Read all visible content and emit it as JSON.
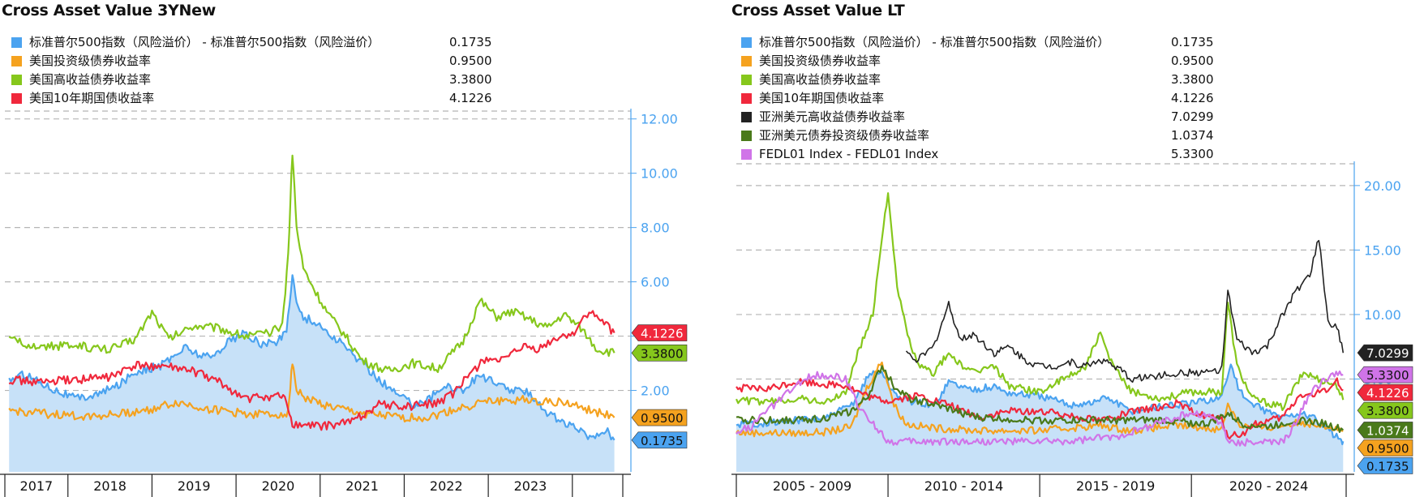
{
  "chart_data": [
    {
      "type": "area",
      "title": "Cross Asset Value 3YNew",
      "x_tick_labels": [
        "2017",
        "2018",
        "2019",
        "2020",
        "2021",
        "2022",
        "2023"
      ],
      "y_tick_labels": [
        "2.00",
        "4.00",
        "6.00",
        "8.00",
        "10.00",
        "12.00"
      ],
      "ylim": [
        -1.0,
        12.2
      ],
      "xlim": [
        2016.75,
        2024.1
      ],
      "grid": true,
      "y_axis_side": "right",
      "legend_position": "top-left",
      "series": [
        {
          "name": "标准普尔500指数（风险溢价） - 标准普尔500指数（风险溢价）",
          "legend_value": "0.1735",
          "last_label": "0.1735",
          "color": "#4ba3f0",
          "fill": "#c7e1f8",
          "x": [
            2016.8,
            2017.0,
            2017.3,
            2017.6,
            2017.9,
            2018.1,
            2018.3,
            2018.6,
            2018.9,
            2019.0,
            2019.2,
            2019.4,
            2019.6,
            2019.8,
            2020.0,
            2020.1,
            2020.17,
            2020.22,
            2020.3,
            2020.45,
            2020.6,
            2020.8,
            2021.0,
            2021.2,
            2021.4,
            2021.6,
            2021.8,
            2022.0,
            2022.2,
            2022.4,
            2022.6,
            2022.8,
            2023.0,
            2023.2,
            2023.4,
            2023.6,
            2023.75,
            2023.9,
            2024.0
          ],
          "y": [
            2.4,
            2.6,
            2.1,
            1.7,
            1.9,
            2.2,
            2.7,
            2.9,
            3.6,
            3.4,
            3.2,
            3.8,
            4.1,
            3.7,
            3.8,
            4.2,
            6.3,
            5.2,
            4.7,
            4.5,
            4.1,
            3.6,
            3.0,
            2.4,
            1.9,
            1.5,
            1.7,
            2.2,
            2.0,
            2.6,
            2.2,
            2.0,
            1.9,
            1.2,
            0.8,
            0.5,
            0.25,
            0.6,
            0.17
          ]
        },
        {
          "name": "美国投资级债券收益率",
          "legend_value": "0.9500",
          "last_label": "0.9500",
          "color": "#f5a21f",
          "x": [
            2016.8,
            2017.2,
            2017.6,
            2018.0,
            2018.4,
            2018.8,
            2019.2,
            2019.6,
            2019.95,
            2020.12,
            2020.17,
            2020.22,
            2020.35,
            2020.6,
            2021.0,
            2021.4,
            2021.8,
            2022.0,
            2022.4,
            2022.8,
            2023.0,
            2023.4,
            2023.8,
            2024.0
          ],
          "y": [
            1.25,
            1.15,
            1.05,
            1.1,
            1.25,
            1.55,
            1.3,
            1.15,
            1.1,
            1.2,
            3.1,
            2.0,
            1.7,
            1.4,
            1.15,
            1.0,
            1.0,
            1.2,
            1.55,
            1.65,
            1.65,
            1.55,
            1.2,
            1.0
          ]
        },
        {
          "name": "美国高收益债券收益率",
          "legend_value": "3.3800",
          "last_label": "3.3800",
          "color": "#86c71c",
          "x": [
            2016.8,
            2017.2,
            2017.6,
            2018.0,
            2018.3,
            2018.5,
            2018.7,
            2019.0,
            2019.3,
            2019.6,
            2019.9,
            2020.05,
            2020.12,
            2020.17,
            2020.22,
            2020.3,
            2020.45,
            2020.6,
            2020.8,
            2021.0,
            2021.3,
            2021.6,
            2021.9,
            2022.2,
            2022.4,
            2022.6,
            2022.8,
            2023.0,
            2023.2,
            2023.4,
            2023.6,
            2023.8,
            2024.0
          ],
          "y": [
            3.85,
            3.6,
            3.65,
            3.5,
            3.9,
            4.9,
            3.9,
            4.4,
            4.3,
            4.0,
            4.1,
            4.4,
            7.0,
            10.8,
            8.0,
            6.5,
            5.6,
            4.8,
            4.0,
            3.1,
            2.7,
            3.0,
            2.8,
            3.8,
            5.3,
            4.7,
            4.9,
            4.6,
            4.3,
            4.8,
            4.3,
            3.5,
            3.38
          ]
        },
        {
          "name": "美国10年期国债收益率",
          "legend_value": "4.1226",
          "last_label": "4.1226",
          "color": "#f0283c",
          "x": [
            2016.8,
            2017.2,
            2017.6,
            2018.0,
            2018.3,
            2018.6,
            2019.0,
            2019.3,
            2019.6,
            2020.0,
            2020.1,
            2020.17,
            2020.3,
            2020.6,
            2020.9,
            2021.2,
            2021.5,
            2021.9,
            2022.1,
            2022.3,
            2022.5,
            2022.7,
            2022.9,
            2023.1,
            2023.3,
            2023.5,
            2023.7,
            2023.9,
            2024.0
          ],
          "y": [
            2.4,
            2.3,
            2.4,
            2.5,
            2.9,
            2.9,
            2.7,
            2.3,
            1.7,
            1.8,
            1.6,
            0.75,
            0.7,
            0.7,
            0.9,
            1.5,
            1.4,
            1.55,
            1.9,
            2.7,
            3.2,
            3.1,
            3.6,
            3.5,
            3.9,
            4.1,
            4.9,
            4.4,
            4.12
          ]
        }
      ]
    },
    {
      "type": "area",
      "title": "Cross Asset Value LT",
      "x_tick_labels": [
        "2005 - 2009",
        "2010 - 2014",
        "2015 - 2019",
        "2020 - 2024"
      ],
      "y_tick_labels": [
        "5.00",
        "10.00",
        "15.00",
        "20.00"
      ],
      "ylim": [
        -2.2,
        21.5
      ],
      "xlim": [
        2004.0,
        2024.1
      ],
      "grid": true,
      "y_axis_side": "right",
      "legend_position": "top-left",
      "series": [
        {
          "name": "标准普尔500指数（风险溢价） - 标准普尔500指数（风险溢价）",
          "legend_value": "0.1735",
          "last_label": "0.1735",
          "color": "#4ba3f0",
          "fill": "#c7e1f8",
          "x": [
            2004.0,
            2005.0,
            2006.0,
            2007.0,
            2007.8,
            2008.4,
            2008.8,
            2009.1,
            2009.5,
            2010.0,
            2010.5,
            2011.0,
            2011.7,
            2012.5,
            2013.0,
            2014.0,
            2015.0,
            2015.8,
            2016.2,
            2017.0,
            2018.0,
            2019.0,
            2020.0,
            2020.3,
            2020.6,
            2021.0,
            2022.0,
            2022.6,
            2023.0,
            2023.5,
            2023.9,
            2024.0
          ],
          "y": [
            1.5,
            1.6,
            1.8,
            2.0,
            3.0,
            5.4,
            5.6,
            4.2,
            3.4,
            3.2,
            2.9,
            4.8,
            4.2,
            4.4,
            3.9,
            3.7,
            3.0,
            3.2,
            3.6,
            2.5,
            2.9,
            3.1,
            3.6,
            6.2,
            4.0,
            3.0,
            2.0,
            2.4,
            2.0,
            1.1,
            0.3,
            0.17
          ]
        },
        {
          "name": "美国投资级债券收益率",
          "legend_value": "0.9500",
          "last_label": "0.9500",
          "color": "#f5a21f",
          "x": [
            2004.0,
            2006.0,
            2007.0,
            2007.8,
            2008.3,
            2008.8,
            2009.2,
            2009.6,
            2010.5,
            2012.0,
            2014.0,
            2016.0,
            2017.0,
            2018.5,
            2020.0,
            2020.2,
            2020.6,
            2021.5,
            2022.5,
            2023.3,
            2024.0
          ],
          "y": [
            0.85,
            0.8,
            0.9,
            1.3,
            4.3,
            6.4,
            3.0,
            1.5,
            1.2,
            1.0,
            1.0,
            1.4,
            1.0,
            1.4,
            1.1,
            3.1,
            1.4,
            1.2,
            1.6,
            1.5,
            0.95
          ]
        },
        {
          "name": "美国高收益债券收益率",
          "legend_value": "3.3800",
          "last_label": "3.3800",
          "color": "#86c71c",
          "x": [
            2004.0,
            2005.0,
            2006.0,
            2007.0,
            2007.6,
            2008.0,
            2008.5,
            2008.8,
            2009.0,
            2009.3,
            2009.7,
            2010.0,
            2010.5,
            2011.0,
            2011.7,
            2012.5,
            2013.0,
            2014.0,
            2014.8,
            2015.5,
            2016.0,
            2016.3,
            2017.0,
            2018.0,
            2019.0,
            2020.0,
            2020.2,
            2020.5,
            2021.0,
            2022.0,
            2022.7,
            2023.2,
            2023.8,
            2024.0
          ],
          "y": [
            3.4,
            3.2,
            3.5,
            3.2,
            4.0,
            7.0,
            10.0,
            16.0,
            19.6,
            12.0,
            8.0,
            6.0,
            5.5,
            7.0,
            5.5,
            6.0,
            4.5,
            4.0,
            5.0,
            6.0,
            8.5,
            6.5,
            4.0,
            3.5,
            4.0,
            4.0,
            11.0,
            6.0,
            3.5,
            2.8,
            5.5,
            5.0,
            4.5,
            3.38
          ]
        },
        {
          "name": "美国10年期国债收益率",
          "legend_value": "4.1226",
          "last_label": "4.1226",
          "color": "#f0283c",
          "x": [
            2004.0,
            2005.0,
            2006.0,
            2007.0,
            2007.6,
            2008.0,
            2008.5,
            2009.0,
            2010.0,
            2011.0,
            2012.0,
            2013.0,
            2014.0,
            2015.0,
            2016.0,
            2017.0,
            2018.5,
            2019.0,
            2020.0,
            2020.2,
            2020.7,
            2021.0,
            2022.0,
            2022.6,
            2023.0,
            2023.5,
            2023.8,
            2024.0
          ],
          "y": [
            4.3,
            4.2,
            4.8,
            4.6,
            4.5,
            4.0,
            3.5,
            3.3,
            3.7,
            3.0,
            2.0,
            2.5,
            2.5,
            2.2,
            1.8,
            2.4,
            3.1,
            2.5,
            1.8,
            0.6,
            0.7,
            1.4,
            2.0,
            3.8,
            3.7,
            4.3,
            4.8,
            4.12
          ]
        },
        {
          "name": "亚洲美元高收益债券收益率",
          "legend_value": "7.0299",
          "last_label": "7.0299",
          "color": "#222222",
          "x": [
            2009.6,
            2010.0,
            2010.5,
            2011.0,
            2011.4,
            2011.8,
            2012.5,
            2013.0,
            2013.5,
            2014.0,
            2014.5,
            2015.0,
            2015.5,
            2016.0,
            2016.5,
            2017.0,
            2018.0,
            2019.0,
            2019.5,
            2020.0,
            2020.2,
            2020.5,
            2021.0,
            2021.5,
            2022.0,
            2022.5,
            2022.9,
            2023.2,
            2023.5,
            2023.8,
            2024.0
          ],
          "y": [
            7.0,
            6.5,
            7.5,
            10.8,
            8.0,
            8.5,
            7.0,
            7.5,
            6.5,
            6.0,
            6.0,
            6.3,
            6.0,
            6.5,
            6.0,
            5.0,
            5.3,
            5.5,
            5.5,
            5.8,
            11.8,
            8.0,
            7.0,
            7.5,
            10.0,
            12.0,
            13.0,
            15.9,
            9.5,
            9.0,
            7.03
          ]
        },
        {
          "name": "亚洲美元债券投资级债券收益率",
          "legend_value": "1.0374",
          "last_label": "1.0374",
          "color": "#4a7a1a",
          "x": [
            2004.0,
            2006.0,
            2007.0,
            2007.8,
            2008.3,
            2008.8,
            2009.2,
            2009.7,
            2010.5,
            2012.0,
            2014.0,
            2016.0,
            2018.0,
            2019.5,
            2020.2,
            2020.7,
            2021.5,
            2022.5,
            2023.3,
            2024.0
          ],
          "y": [
            1.8,
            1.8,
            2.0,
            2.5,
            3.5,
            6.0,
            4.5,
            3.5,
            3.0,
            2.0,
            1.8,
            1.8,
            1.8,
            1.5,
            2.3,
            1.5,
            1.3,
            1.8,
            1.6,
            1.04
          ]
        },
        {
          "name": "FEDL01 Index - FEDL01 Index",
          "legend_value": "5.3300",
          "last_label": "5.3300",
          "color": "#d074e8",
          "x": [
            2004.0,
            2004.5,
            2005.0,
            2006.0,
            2006.5,
            2007.0,
            2007.6,
            2008.0,
            2008.3,
            2008.8,
            2009.0,
            2012.0,
            2015.0,
            2015.9,
            2016.5,
            2017.0,
            2017.5,
            2018.0,
            2018.5,
            2019.0,
            2019.6,
            2020.0,
            2020.2,
            2021.0,
            2022.0,
            2022.2,
            2022.5,
            2022.9,
            2023.3,
            2023.6,
            2024.0
          ],
          "y": [
            1.0,
            1.3,
            2.5,
            4.5,
            5.3,
            5.3,
            5.0,
            3.0,
            2.0,
            0.8,
            0.15,
            0.15,
            0.15,
            0.4,
            0.5,
            0.9,
            1.2,
            1.7,
            2.0,
            2.4,
            2.1,
            1.6,
            0.1,
            0.1,
            0.1,
            0.6,
            2.0,
            3.8,
            4.8,
            5.3,
            5.33
          ]
        }
      ]
    }
  ]
}
